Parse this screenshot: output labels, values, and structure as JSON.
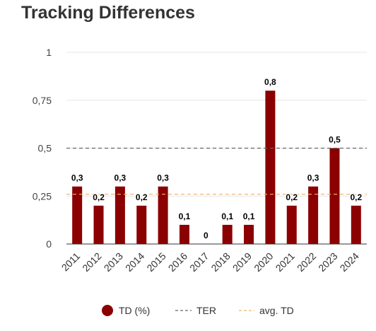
{
  "title": "Tracking Differences",
  "chart_data": {
    "type": "bar",
    "categories": [
      "2011",
      "2012",
      "2013",
      "2014",
      "2015",
      "2016",
      "2017",
      "2018",
      "2019",
      "2020",
      "2021",
      "2022",
      "2023",
      "2024"
    ],
    "series": [
      {
        "name": "TD (%)",
        "type": "bar",
        "color": "#8b0000",
        "values": [
          0.3,
          0.2,
          0.3,
          0.2,
          0.3,
          0.1,
          0,
          0.1,
          0.1,
          0.8,
          0.2,
          0.3,
          0.5,
          0.2
        ],
        "labels": [
          "0,3",
          "0,2",
          "0,3",
          "0,2",
          "0,3",
          "0,1",
          "0",
          "0,1",
          "0,1",
          "0,8",
          "0,2",
          "0,3",
          "0,5",
          "0,2"
        ]
      },
      {
        "name": "TER",
        "type": "dashed-line",
        "color": "#666666",
        "value": 0.5
      },
      {
        "name": "avg. TD",
        "type": "dashed-line",
        "color": "#f0b070",
        "value": 0.26
      }
    ],
    "ylim": [
      0,
      1
    ],
    "yticks": [
      0,
      0.25,
      0.5,
      0.75,
      1
    ],
    "ytick_labels": [
      "0",
      "0,25",
      "0,5",
      "0,75",
      "1"
    ],
    "grid": true,
    "legend_position": "bottom"
  }
}
